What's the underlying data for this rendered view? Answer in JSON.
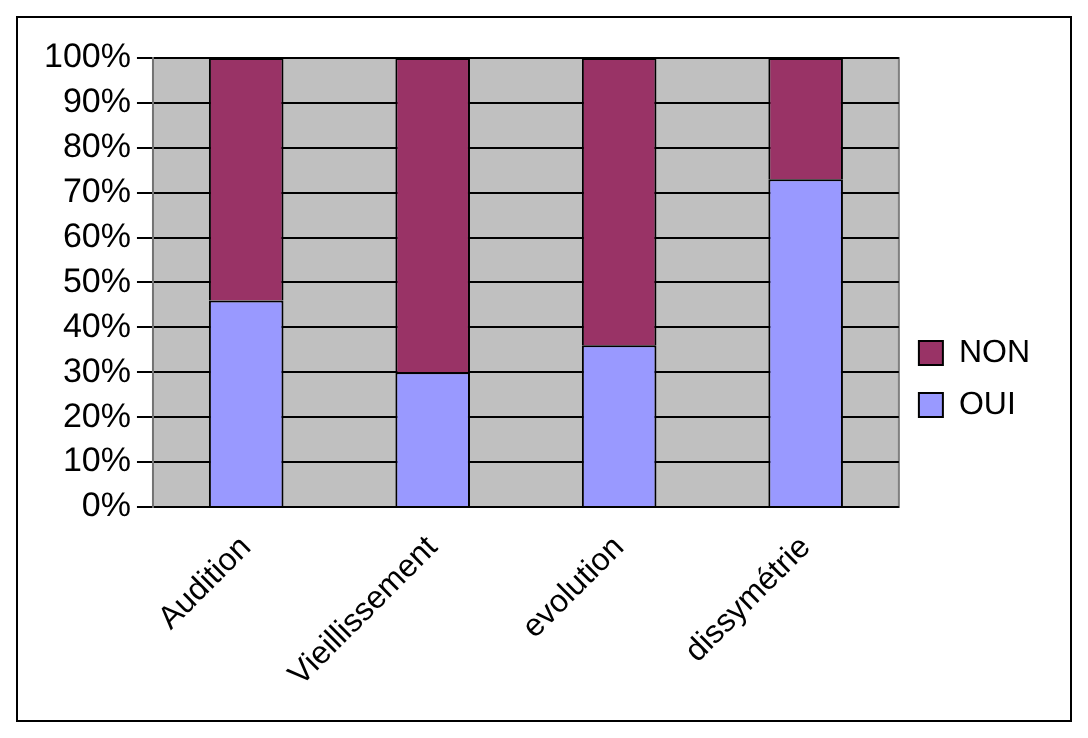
{
  "chart_data": {
    "type": "bar",
    "stacked": true,
    "categories": [
      "Audition",
      "Vieillissement",
      "evolution",
      "dissymétrie"
    ],
    "series": [
      {
        "name": "OUI",
        "color": "#9999ff",
        "values": [
          46,
          30,
          36,
          73
        ]
      },
      {
        "name": "NON",
        "color": "#993366",
        "values": [
          54,
          70,
          64,
          27
        ]
      }
    ],
    "ylim": [
      0,
      100
    ],
    "yticks": [
      {
        "value": 0,
        "label": "0%"
      },
      {
        "value": 10,
        "label": "10%"
      },
      {
        "value": 20,
        "label": "20%"
      },
      {
        "value": 30,
        "label": "30%"
      },
      {
        "value": 40,
        "label": "40%"
      },
      {
        "value": 50,
        "label": "50%"
      },
      {
        "value": 60,
        "label": "60%"
      },
      {
        "value": 70,
        "label": "70%"
      },
      {
        "value": 80,
        "label": "80%"
      },
      {
        "value": 90,
        "label": "90%"
      },
      {
        "value": 100,
        "label": "100%"
      }
    ],
    "grid": "y",
    "legend": "right"
  }
}
